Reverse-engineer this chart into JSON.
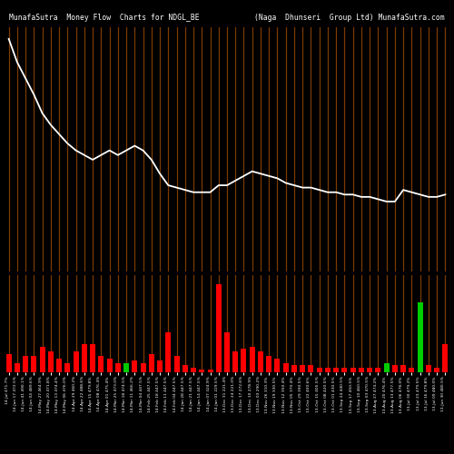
{
  "title_left": "MunafaSutra  Money Flow  Charts for NDGL_BE",
  "title_right": "(Naga  Dhunseri  Group Ltd) MunafaSutra.com",
  "background_color": "#000000",
  "bar_color_red": "#ff0000",
  "bar_color_green": "#00cc00",
  "line_color": "#ffffff",
  "grid_color": "#7B3A00",
  "line_values": [
    100,
    90,
    83,
    76,
    68,
    63,
    59,
    55,
    52,
    50,
    48,
    50,
    52,
    50,
    52,
    54,
    52,
    48,
    42,
    37,
    36,
    35,
    34,
    34,
    34,
    37,
    37,
    39,
    41,
    43,
    42,
    41,
    40,
    38,
    37,
    36,
    36,
    35,
    34,
    34,
    33,
    33,
    32,
    32,
    31,
    30,
    30,
    35,
    34,
    33,
    32,
    32,
    33
  ],
  "bar_values": [
    8,
    4,
    7,
    7,
    11,
    9,
    6,
    4,
    9,
    12,
    12,
    7,
    6,
    4,
    -4,
    5,
    4,
    8,
    5,
    17,
    7,
    3,
    2,
    1,
    1,
    38,
    17,
    9,
    10,
    11,
    9,
    7,
    6,
    4,
    3,
    3,
    3,
    2,
    2,
    2,
    2,
    2,
    2,
    2,
    2,
    -4,
    3,
    3,
    2,
    -30,
    3,
    2,
    12
  ],
  "labels": [
    "14-Jul 471.7%",
    "14-Jun 17 472.5%",
    "14-Jun 41 490.1%",
    "14-Jun 04 489.6%",
    "14-May 27 464.9%",
    "14-May 20 471.8%",
    "14-May 13 474.4%",
    "14-May 06 476.0%",
    "14-Apr 29 460.2%",
    "14-Apr 22 488.6%",
    "14-Apr 15 479.8%",
    "14-Apr 08 476.4%",
    "14-Apr 01 475.4%",
    "14-Mar 25 473.0%",
    "14-Mar 18 474.5%",
    "14-Mar 11 466.2%",
    "14-Mar 04 447.5%",
    "14-Feb 25 447.5%",
    "14-Feb 18 447.5%",
    "14-Feb 11 447.5%",
    "14-Feb 04 447.5%",
    "14-Jan 28 447.5%",
    "14-Jan 21 447.5%",
    "14-Jan 14 447.5%",
    "14-Jan 07 324.9%",
    "14-Jan 01 229.5%",
    "13-Dec 31 221.4%",
    "13-Dec 24 221.0%",
    "13-Dec 17 272.6%",
    "13-Dec 10 278.9%",
    "13-Dec 03 290.2%",
    "13-Nov 26 310.3%",
    "13-Nov 19 330.5%",
    "13-Nov 12 350.4%",
    "13-Nov 05 370.4%",
    "13-Oct 29 390.5%",
    "13-Oct 22 400.6%",
    "13-Oct 15 405.5%",
    "13-Oct 08 420.5%",
    "13-Oct 01 430.5%",
    "13-Sep 24 440.5%",
    "13-Sep 17 450.5%",
    "13-Sep 10 460.5%",
    "13-Sep 03 470.5%",
    "13-Aug 27 474.2%",
    "13-Aug 20 476.4%",
    "13-Aug 13 477.5%",
    "13-Aug 06 478.0%",
    "13-Jul 30 479.2%",
    "13-Jul 23 479.5%",
    "13-Jul 16 479.8%",
    "13-Jul 09 480.0%",
    "13-Jun 30 480.5%"
  ],
  "n": 53,
  "figsize": [
    5.0,
    5.0
  ],
  "dpi": 100
}
